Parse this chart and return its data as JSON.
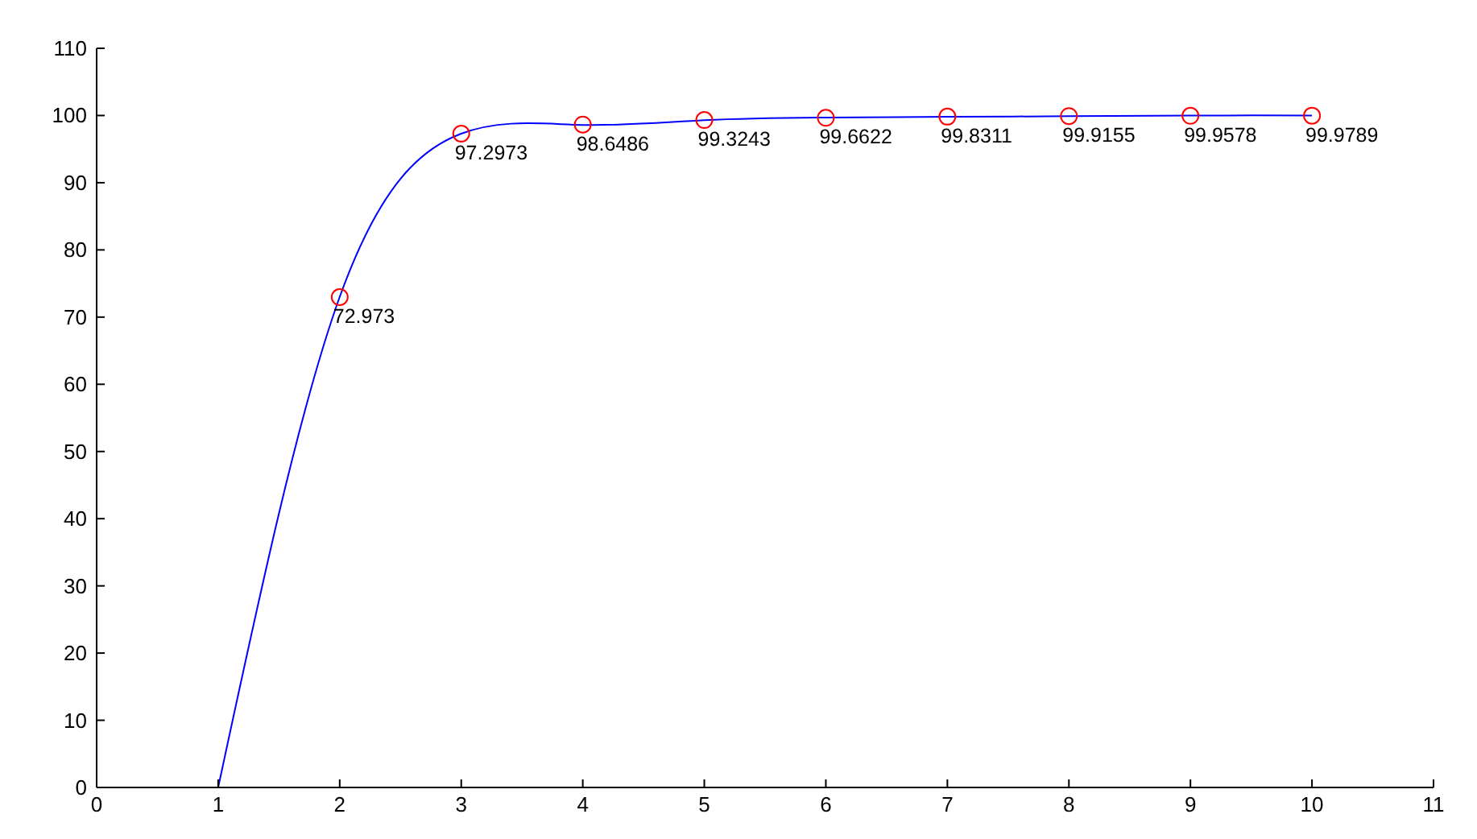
{
  "chart_data": {
    "type": "line",
    "xlim": [
      0,
      11
    ],
    "xticks": [
      0,
      1,
      2,
      3,
      4,
      5,
      6,
      7,
      8,
      9,
      10,
      11
    ],
    "ylim": [
      0,
      110
    ],
    "yticks": [
      0,
      10,
      20,
      30,
      40,
      50,
      60,
      70,
      80,
      90,
      100,
      110
    ],
    "grid": false,
    "series": [
      {
        "color": "#0000ff",
        "marker": "none",
        "x": [
          1,
          2,
          3,
          4,
          5,
          6,
          7,
          8,
          9,
          10
        ],
        "values": [
          0,
          73,
          97.3,
          98.6,
          99.3,
          99.7,
          99.8,
          99.9,
          100,
          100
        ]
      },
      {
        "type": "scatter",
        "color": "#ff0000",
        "marker": "circle",
        "x": [
          2,
          3,
          4,
          5,
          6,
          7,
          8,
          9,
          10
        ],
        "values": [
          72.973,
          97.2973,
          98.6486,
          99.3243,
          99.6622,
          99.8311,
          99.9155,
          99.9578,
          99.9789
        ],
        "value_labels": [
          "72.973",
          "97.2973",
          "98.6486",
          "99.3243",
          "99.6622",
          "99.8311",
          "99.9155",
          "99.9578",
          "99.9789"
        ]
      }
    ]
  }
}
